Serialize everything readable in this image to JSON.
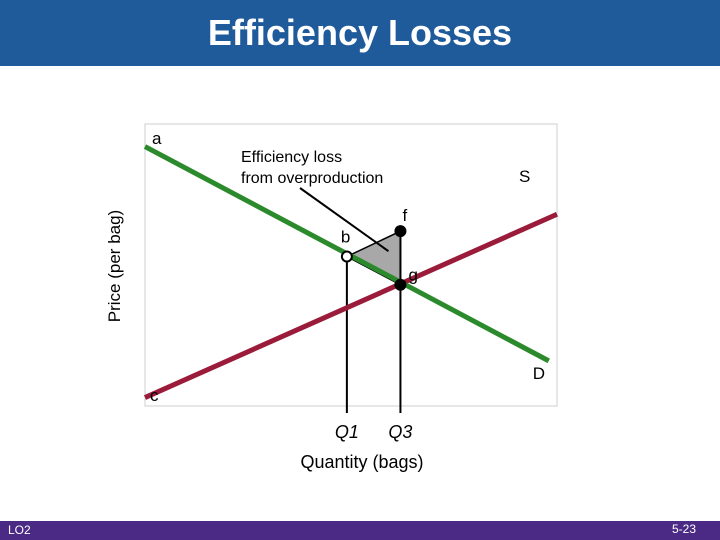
{
  "slide": {
    "title": "Efficiency Losses",
    "footer_left": "LO2",
    "footer_right": "5-23",
    "colors": {
      "title_bar": "#1f5a9a",
      "footer_bar": "#4b2a86",
      "supply": "#9b1c3a",
      "demand": "#2b8a2b",
      "loss_area": "#a8a8a8"
    }
  },
  "chart_data": {
    "type": "line",
    "title": "",
    "xlabel": "Quantity (bags)",
    "ylabel": "Price (per bag)",
    "xlim": [
      0,
      10
    ],
    "ylim": [
      0,
      10
    ],
    "grid": false,
    "series": [
      {
        "name": "S",
        "points": [
          [
            0,
            0.3
          ],
          [
            10,
            6.8
          ]
        ]
      },
      {
        "name": "D",
        "points": [
          [
            0,
            9.2
          ],
          [
            9.8,
            1.6
          ]
        ]
      }
    ],
    "points": [
      {
        "label": "b",
        "x": 4.9,
        "y": 5.3,
        "style": "hollow"
      },
      {
        "label": "f",
        "x": 6.2,
        "y": 6.2,
        "style": "filled"
      },
      {
        "label": "g",
        "x": 6.2,
        "y": 4.3,
        "style": "filled"
      }
    ],
    "corner_labels": [
      {
        "label": "a",
        "x": 0,
        "y": 9.2
      },
      {
        "label": "c",
        "x": 0,
        "y": 0.3
      }
    ],
    "vlines": [
      {
        "label": "Q1",
        "x": 4.9
      },
      {
        "label": "Q3",
        "x": 6.2
      }
    ],
    "shaded_region": {
      "label": "Efficiency loss from overproduction",
      "vertices": [
        [
          4.9,
          5.3
        ],
        [
          6.2,
          6.2
        ],
        [
          6.2,
          4.3
        ]
      ]
    }
  }
}
